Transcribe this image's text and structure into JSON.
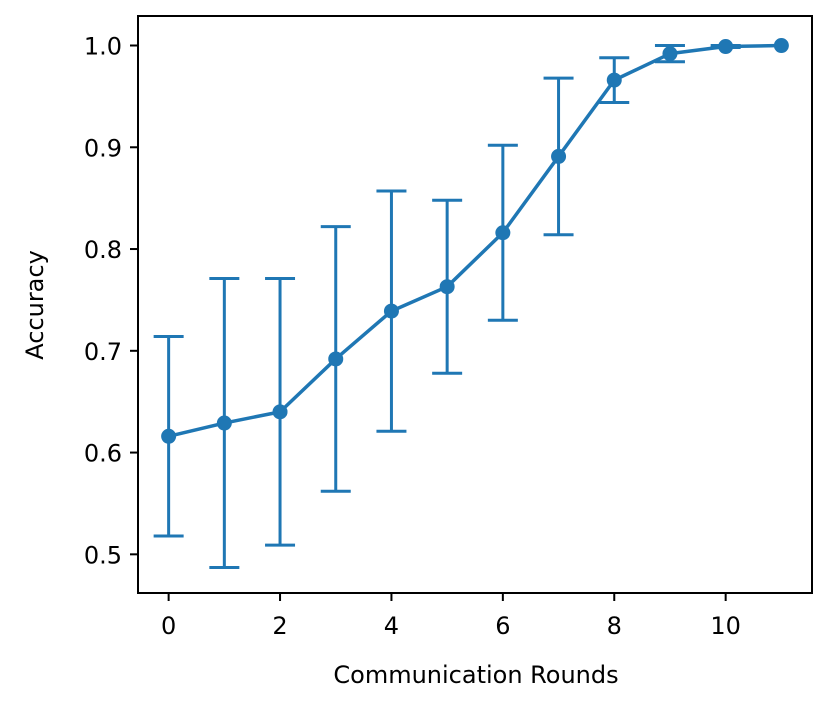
{
  "chart_data": {
    "type": "line",
    "title": "",
    "xlabel": "Communication Rounds",
    "ylabel": "Accuracy",
    "xlim": [
      -0.55,
      11.55
    ],
    "ylim": [
      0.462,
      1.029
    ],
    "x_ticks": [
      0,
      2,
      4,
      6,
      8,
      10
    ],
    "y_ticks": [
      0.5,
      0.6,
      0.7,
      0.8,
      0.9,
      1.0
    ],
    "x_tick_labels": [
      "0",
      "2",
      "4",
      "6",
      "8",
      "10"
    ],
    "y_tick_labels": [
      "0.5",
      "0.6",
      "0.7",
      "0.8",
      "0.9",
      "1.0"
    ],
    "grid": false,
    "legend": "none",
    "color": "#1f77b4",
    "series": [
      {
        "x": [
          0,
          1,
          2,
          3,
          4,
          5,
          6,
          7,
          8,
          9,
          10,
          11
        ],
        "y": [
          0.616,
          0.629,
          0.64,
          0.692,
          0.739,
          0.763,
          0.816,
          0.891,
          0.966,
          0.992,
          0.999,
          1.0
        ],
        "err_low": [
          0.518,
          0.487,
          0.509,
          0.562,
          0.621,
          0.678,
          0.73,
          0.814,
          0.944,
          0.984,
          0.998,
          1.0
        ],
        "err_high": [
          0.714,
          0.771,
          0.771,
          0.822,
          0.857,
          0.848,
          0.902,
          0.968,
          0.988,
          1.0,
          1.0,
          1.0
        ]
      }
    ]
  }
}
